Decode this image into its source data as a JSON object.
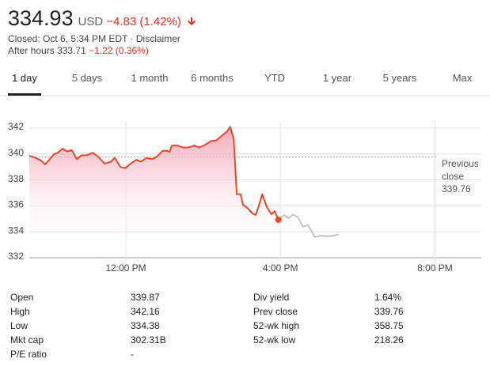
{
  "header": {
    "price": 334.93,
    "currency": "USD",
    "change": "−4.83 (1.42%)",
    "closed": "Closed: Oct 6, 5:34 PM EDT ·",
    "disclaimer": "Disclaimer",
    "after_hours_label": "After hours",
    "after_hours_price": 333.71,
    "after_hours_change": "−1.22 (0.36%)"
  },
  "tabs": [
    "1 day",
    "5 days",
    "1 month",
    "6 months",
    "YTD",
    "1 year",
    "5 years",
    "Max"
  ],
  "active_tab": 0,
  "chart_data": {
    "type": "line",
    "series": [
      {
        "color": "#e8472b",
        "x": [
          9.5,
          9.66,
          9.8,
          9.91,
          10.0,
          10.14,
          10.24,
          10.36,
          10.48,
          10.6,
          10.73,
          10.85,
          10.99,
          11.14,
          11.28,
          11.45,
          11.61,
          11.71,
          11.86,
          11.98,
          12.12,
          12.27,
          12.39,
          12.53,
          12.68,
          12.8,
          12.95,
          13.07,
          13.13,
          13.19,
          13.33,
          13.48,
          13.62,
          13.77,
          13.9,
          14.05,
          14.2,
          14.34,
          14.48,
          14.62,
          14.7,
          14.79,
          14.87,
          14.97,
          15.03,
          15.16,
          15.28,
          15.36,
          15.44,
          15.53,
          15.65,
          15.77,
          15.85,
          15.95
        ],
        "values": [
          339.87,
          339.7,
          339.5,
          339.2,
          339.5,
          340.0,
          340.1,
          340.4,
          340.2,
          340.3,
          339.6,
          339.9,
          339.9,
          340.1,
          339.8,
          339.25,
          339.4,
          339.7,
          339.0,
          338.9,
          339.25,
          339.55,
          339.4,
          339.7,
          339.6,
          339.8,
          340.25,
          340.25,
          340.15,
          340.65,
          340.65,
          340.5,
          340.5,
          340.65,
          340.5,
          340.7,
          341.0,
          341.05,
          341.4,
          341.75,
          342.1,
          341.2,
          336.9,
          336.9,
          336.1,
          335.8,
          335.4,
          335.3,
          336.0,
          336.9,
          335.9,
          335.35,
          335.6,
          334.93
        ]
      },
      {
        "color": "#c4c4c4",
        "x": [
          15.95,
          16.09,
          16.21,
          16.33,
          16.46,
          16.58,
          16.72,
          16.89,
          17.05,
          17.21,
          17.38,
          17.51
        ],
        "values": [
          334.93,
          335.3,
          335.05,
          335.35,
          335.1,
          334.4,
          334.5,
          333.6,
          333.7,
          333.65,
          333.7,
          333.8
        ]
      }
    ],
    "xlim": [
      9.5,
      21.2
    ],
    "xticks": [
      {
        "value": 12,
        "label": "12:00 PM"
      },
      {
        "value": 16,
        "label": "4:00 PM"
      },
      {
        "value": 20,
        "label": "8:00 PM"
      }
    ],
    "ylim": [
      332,
      342
    ],
    "yticks": [
      332,
      334,
      336,
      338,
      340,
      342
    ],
    "grid": true,
    "previous_close_label": "Previous close",
    "previous_close": 339.76
  },
  "stats": [
    [
      [
        "Open",
        339.87
      ],
      [
        "Div yield",
        "1.64%"
      ]
    ],
    [
      [
        "High",
        342.16
      ],
      [
        "Prev close",
        339.76
      ]
    ],
    [
      [
        "Low",
        334.38
      ],
      [
        "52-wk high",
        358.75
      ]
    ],
    [
      [
        "Mkt cap",
        "302.31B"
      ],
      [
        "52-wk low",
        218.26
      ]
    ],
    [
      [
        "P/E ratio",
        "-"
      ]
    ]
  ]
}
